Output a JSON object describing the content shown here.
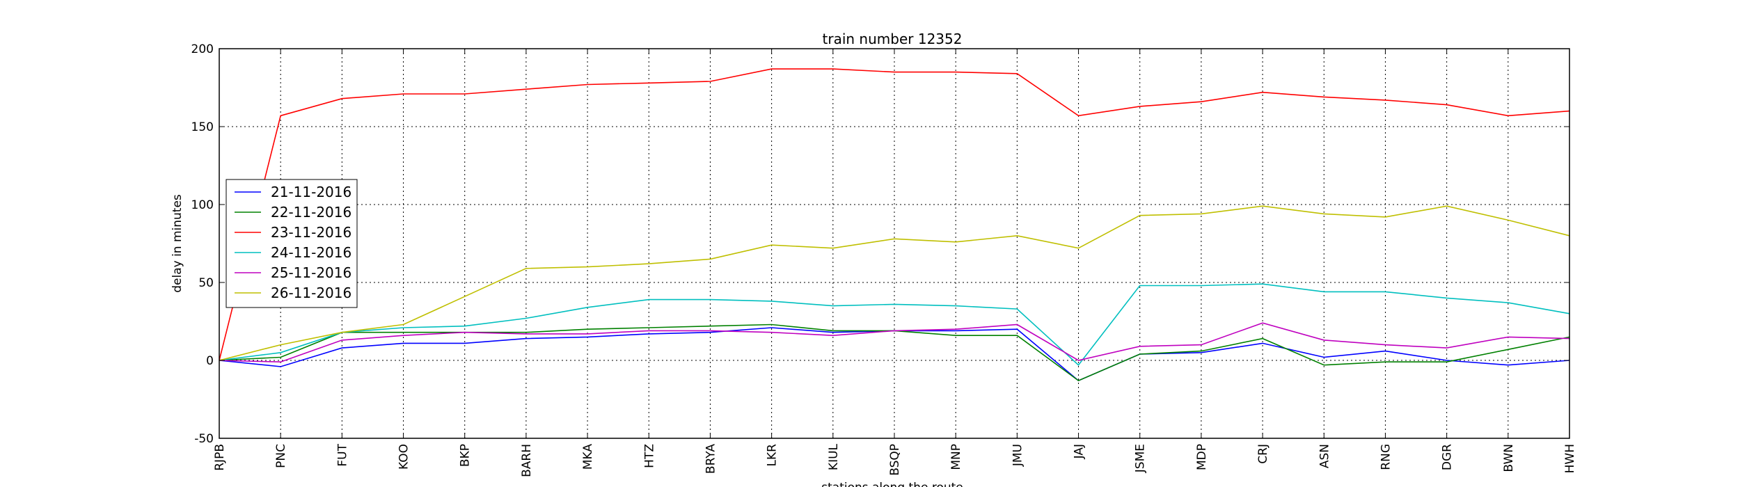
{
  "chart_data": {
    "type": "line",
    "title": "train number 12352",
    "xlabel": "stations along the route",
    "ylabel": "delay in minutes",
    "ylim": [
      -50,
      200
    ],
    "yticks": [
      -50,
      0,
      50,
      100,
      150,
      200
    ],
    "grid": true,
    "legend_position": "center-left",
    "categories": [
      "RJPB",
      "PNC",
      "FUT",
      "KOO",
      "BKP",
      "BARH",
      "MKA",
      "HTZ",
      "BRYA",
      "LKR",
      "KIUL",
      "BSQP",
      "MNP",
      "JMU",
      "JAJ",
      "JSME",
      "MDP",
      "CRJ",
      "ASN",
      "RNG",
      "DGR",
      "BWN",
      "HWH"
    ],
    "series": [
      {
        "name": "21-11-2016",
        "color": "#0000ff",
        "values": [
          0,
          -4,
          8,
          11,
          11,
          14,
          15,
          17,
          18,
          21,
          18,
          19,
          19,
          20,
          -13,
          4,
          5,
          11,
          2,
          6,
          0,
          -3,
          0
        ]
      },
      {
        "name": "22-11-2016",
        "color": "#008000",
        "values": [
          0,
          2,
          18,
          18,
          18,
          18,
          20,
          21,
          22,
          23,
          19,
          19,
          16,
          16,
          -13,
          4,
          6,
          14,
          -3,
          -1,
          -1,
          7,
          15
        ]
      },
      {
        "name": "23-11-2016",
        "color": "#ff0000",
        "values": [
          0,
          157,
          168,
          171,
          171,
          174,
          177,
          178,
          179,
          187,
          187,
          185,
          185,
          184,
          157,
          163,
          166,
          172,
          169,
          167,
          164,
          157,
          160
        ]
      },
      {
        "name": "24-11-2016",
        "color": "#00bfbf",
        "values": [
          0,
          5,
          18,
          21,
          22,
          27,
          34,
          39,
          39,
          38,
          35,
          36,
          35,
          33,
          -3,
          48,
          48,
          49,
          44,
          44,
          40,
          37,
          30
        ]
      },
      {
        "name": "25-11-2016",
        "color": "#bf00bf",
        "values": [
          0,
          -1,
          13,
          16,
          18,
          17,
          17,
          19,
          19,
          18,
          16,
          19,
          20,
          23,
          0,
          9,
          10,
          24,
          13,
          10,
          8,
          15,
          14
        ]
      },
      {
        "name": "26-11-2016",
        "color": "#bfbf00",
        "values": [
          0,
          10,
          18,
          23,
          41,
          59,
          60,
          62,
          65,
          74,
          72,
          78,
          76,
          80,
          72,
          93,
          94,
          99,
          94,
          92,
          99,
          90,
          80
        ]
      }
    ]
  }
}
